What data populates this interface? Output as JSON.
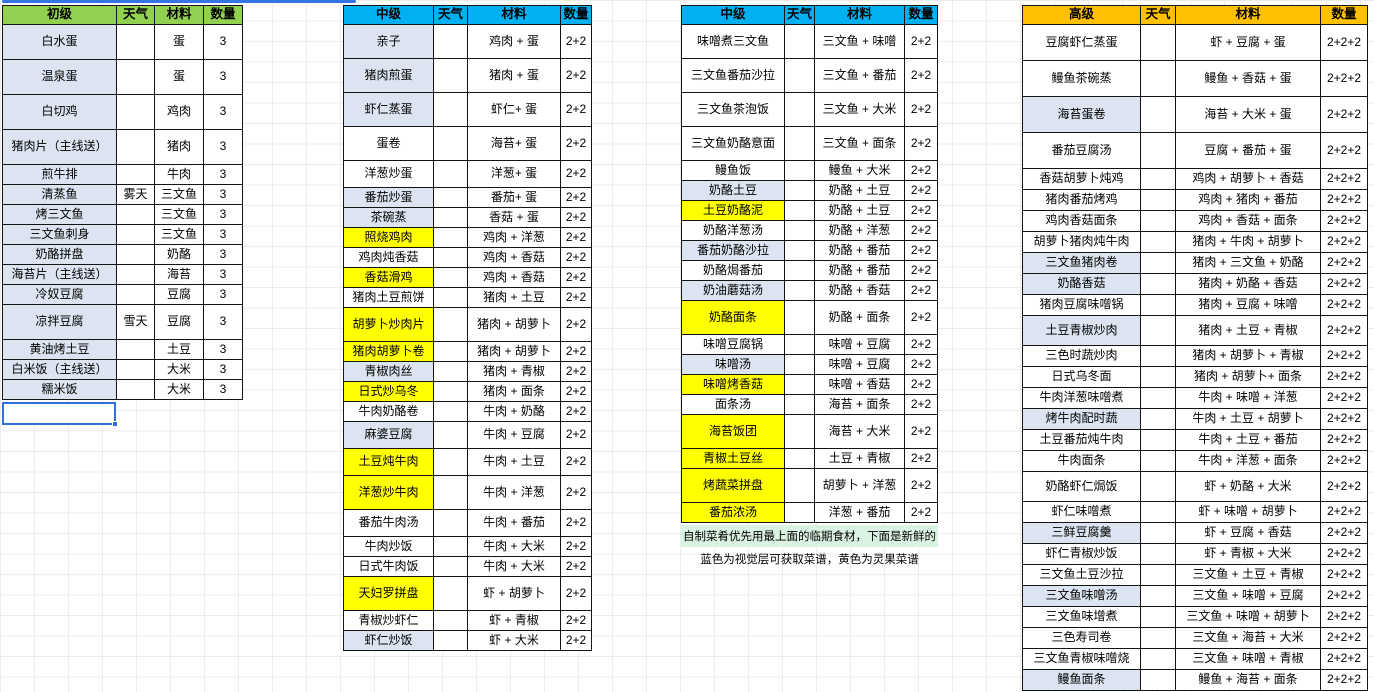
{
  "colors": {
    "header_green": "#92d050",
    "header_blue": "#00b0f0",
    "header_orange": "#ffc000",
    "cell_blue": "#dce4f2",
    "cell_yellow": "#ffff00",
    "note_green": "#d9f2e1",
    "selection_blue": "#2f6fd6"
  },
  "columns": {
    "weather": "天气",
    "material": "材料",
    "qty": "数量"
  },
  "notes": {
    "line1": "自制菜肴优先用最上面的临期食材，下面是新鲜的",
    "line2": "蓝色为视觉层可获取菜谱，黄色为灵果菜谱"
  },
  "tables": [
    {
      "level": "初级",
      "header_color": "#92d050",
      "rows": [
        {
          "name": "白水蛋",
          "weather": "",
          "material": "蛋",
          "qty": "3",
          "bg": "blue",
          "h": "t"
        },
        {
          "name": "温泉蛋",
          "weather": "",
          "material": "蛋",
          "qty": "3",
          "bg": "blue",
          "h": "t"
        },
        {
          "name": "白切鸡",
          "weather": "",
          "material": "鸡肉",
          "qty": "3",
          "bg": "blue",
          "h": "t"
        },
        {
          "name": "猪肉片（主线送）",
          "weather": "",
          "material": "猪肉",
          "qty": "3",
          "bg": "blue",
          "h": "t"
        },
        {
          "name": "煎牛排",
          "weather": "",
          "material": "牛肉",
          "qty": "3",
          "bg": "blue",
          "h": "s"
        },
        {
          "name": "清蒸鱼",
          "weather": "雾天",
          "material": "三文鱼",
          "qty": "3",
          "bg": "blue",
          "h": "s"
        },
        {
          "name": "烤三文鱼",
          "weather": "",
          "material": "三文鱼",
          "qty": "3",
          "bg": "blue",
          "h": "s"
        },
        {
          "name": "三文鱼刺身",
          "weather": "",
          "material": "三文鱼",
          "qty": "3",
          "bg": "blue",
          "h": "s"
        },
        {
          "name": "奶酪拼盘",
          "weather": "",
          "material": "奶酪",
          "qty": "3",
          "bg": "blue",
          "h": "s"
        },
        {
          "name": "海苔片（主线送）",
          "weather": "",
          "material": "海苔",
          "qty": "3",
          "bg": "blue",
          "h": "s"
        },
        {
          "name": "冷奴豆腐",
          "weather": "",
          "material": "豆腐",
          "qty": "3",
          "bg": "blue",
          "h": "s"
        },
        {
          "name": "凉拌豆腐",
          "weather": "雪天",
          "material": "豆腐",
          "qty": "3",
          "bg": "blue",
          "h": "t"
        },
        {
          "name": "黄油烤土豆",
          "weather": "",
          "material": "土豆",
          "qty": "3",
          "bg": "blue",
          "h": "s"
        },
        {
          "name": "白米饭（主线送）",
          "weather": "",
          "material": "大米",
          "qty": "3",
          "bg": "blue",
          "h": "s"
        },
        {
          "name": "糯米饭",
          "weather": "",
          "material": "大米",
          "qty": "3",
          "bg": "blue",
          "h": "s"
        }
      ]
    },
    {
      "level": "中级",
      "header_color": "#00b0f0",
      "rows": [
        {
          "name": "亲子",
          "weather": "",
          "material": "鸡肉 + 蛋",
          "qty": "2+2",
          "bg": "blue",
          "h": "t"
        },
        {
          "name": "猪肉煎蛋",
          "weather": "",
          "material": "猪肉 + 蛋",
          "qty": "2+2",
          "bg": "blue",
          "h": "t"
        },
        {
          "name": "虾仁蒸蛋",
          "weather": "",
          "material": "虾仁+ 蛋",
          "qty": "2+2",
          "bg": "blue",
          "h": "t"
        },
        {
          "name": "蛋卷",
          "weather": "",
          "material": "海苔+ 蛋",
          "qty": "2+2",
          "bg": "white",
          "h": "t"
        },
        {
          "name": "洋葱炒蛋",
          "weather": "",
          "material": "洋葱+ 蛋",
          "qty": "2+2",
          "bg": "white",
          "h": "m"
        },
        {
          "name": "番茄炒蛋",
          "weather": "",
          "material": "番茄+ 蛋",
          "qty": "2+2",
          "bg": "blue",
          "h": "s"
        },
        {
          "name": "茶碗蒸",
          "weather": "",
          "material": "香菇 + 蛋",
          "qty": "2+2",
          "bg": "blue",
          "h": "s"
        },
        {
          "name": "照烧鸡肉",
          "weather": "",
          "material": "鸡肉 + 洋葱",
          "qty": "2+2",
          "bg": "yellow",
          "h": "s"
        },
        {
          "name": "鸡肉炖香菇",
          "weather": "",
          "material": "鸡肉 + 香菇",
          "qty": "2+2",
          "bg": "white",
          "h": "s"
        },
        {
          "name": "香菇滑鸡",
          "weather": "",
          "material": "鸡肉 + 香菇",
          "qty": "2+2",
          "bg": "yellow",
          "h": "s"
        },
        {
          "name": "猪肉土豆煎饼",
          "weather": "",
          "material": "猪肉 + 土豆",
          "qty": "2+2",
          "bg": "white",
          "h": "s"
        },
        {
          "name": "胡萝卜炒肉片",
          "weather": "",
          "material": "猪肉 + 胡萝卜",
          "qty": "2+2",
          "bg": "yellow",
          "h": "t"
        },
        {
          "name": "猪肉胡萝卜卷",
          "weather": "",
          "material": "猪肉 + 胡萝卜",
          "qty": "2+2",
          "bg": "yellow",
          "h": "s"
        },
        {
          "name": "青椒肉丝",
          "weather": "",
          "material": "猪肉 + 青椒",
          "qty": "2+2",
          "bg": "blue",
          "h": "s"
        },
        {
          "name": "日式炒乌冬",
          "weather": "",
          "material": "猪肉 + 面条",
          "qty": "2+2",
          "bg": "yellow",
          "h": "s"
        },
        {
          "name": "牛肉奶酪卷",
          "weather": "",
          "material": "牛肉 + 奶酪",
          "qty": "2+2",
          "bg": "white",
          "h": "s"
        },
        {
          "name": "麻婆豆腐",
          "weather": "",
          "material": "牛肉 + 豆腐",
          "qty": "2+2",
          "bg": "blue",
          "h": "m"
        },
        {
          "name": "土豆炖牛肉",
          "weather": "",
          "material": "牛肉 + 土豆",
          "qty": "2+2",
          "bg": "yellow",
          "h": "m"
        },
        {
          "name": "洋葱炒牛肉",
          "weather": "",
          "material": "牛肉 + 洋葱",
          "qty": "2+2",
          "bg": "yellow",
          "h": "t"
        },
        {
          "name": "番茄牛肉汤",
          "weather": "",
          "material": "牛肉 + 番茄",
          "qty": "2+2",
          "bg": "white",
          "h": "m"
        },
        {
          "name": "牛肉炒饭",
          "weather": "",
          "material": "牛肉 + 大米",
          "qty": "2+2",
          "bg": "white",
          "h": "s"
        },
        {
          "name": "日式牛肉饭",
          "weather": "",
          "material": "牛肉 + 大米",
          "qty": "2+2",
          "bg": "white",
          "h": "s"
        },
        {
          "name": "天妇罗拼盘",
          "weather": "",
          "material": "虾 + 胡萝卜",
          "qty": "2+2",
          "bg": "yellow",
          "h": "t"
        },
        {
          "name": "青椒炒虾仁",
          "weather": "",
          "material": "虾 + 青椒",
          "qty": "2+2",
          "bg": "white",
          "h": "s"
        },
        {
          "name": "虾仁炒饭",
          "weather": "",
          "material": "虾 + 大米",
          "qty": "2+2",
          "bg": "blue",
          "h": "s"
        }
      ]
    },
    {
      "level": "中级",
      "header_color": "#00b0f0",
      "rows": [
        {
          "name": "味噌煮三文鱼",
          "weather": "",
          "material": "三文鱼 + 味噌",
          "qty": "2+2",
          "bg": "white",
          "h": "t"
        },
        {
          "name": "三文鱼番茄沙拉",
          "weather": "",
          "material": "三文鱼 + 番茄",
          "qty": "2+2",
          "bg": "white",
          "h": "t"
        },
        {
          "name": "三文鱼茶泡饭",
          "weather": "",
          "material": "三文鱼 + 大米",
          "qty": "2+2",
          "bg": "white",
          "h": "t"
        },
        {
          "name": "三文鱼奶酪意面",
          "weather": "",
          "material": "三文鱼 + 面条",
          "qty": "2+2",
          "bg": "white",
          "h": "t"
        },
        {
          "name": "鳗鱼饭",
          "weather": "",
          "material": "鳗鱼 + 大米",
          "qty": "2+2",
          "bg": "white",
          "h": "s"
        },
        {
          "name": "奶酪土豆",
          "weather": "",
          "material": "奶酪 + 土豆",
          "qty": "2+2",
          "bg": "blue",
          "h": "s"
        },
        {
          "name": "土豆奶酪泥",
          "weather": "",
          "material": "奶酪 + 土豆",
          "qty": "2+2",
          "bg": "yellow",
          "h": "s"
        },
        {
          "name": "奶酪洋葱汤",
          "weather": "",
          "material": "奶酪 + 洋葱",
          "qty": "2+2",
          "bg": "white",
          "h": "s"
        },
        {
          "name": "番茄奶酪沙拉",
          "weather": "",
          "material": "奶酪 + 番茄",
          "qty": "2+2",
          "bg": "blue",
          "h": "s"
        },
        {
          "name": "奶酪焗番茄",
          "weather": "",
          "material": "奶酪 + 番茄",
          "qty": "2+2",
          "bg": "white",
          "h": "s"
        },
        {
          "name": "奶油蘑菇汤",
          "weather": "",
          "material": "奶酪 + 香菇",
          "qty": "2+2",
          "bg": "blue",
          "h": "s"
        },
        {
          "name": "奶酪面条",
          "weather": "",
          "material": "奶酪 + 面条",
          "qty": "2+2",
          "bg": "yellow",
          "h": "t"
        },
        {
          "name": "味噌豆腐锅",
          "weather": "",
          "material": "味噌 + 豆腐",
          "qty": "2+2",
          "bg": "white",
          "h": "s"
        },
        {
          "name": "味噌汤",
          "weather": "",
          "material": "味噌 + 豆腐",
          "qty": "2+2",
          "bg": "blue",
          "h": "s"
        },
        {
          "name": "味噌烤香菇",
          "weather": "",
          "material": "味噌 + 香菇",
          "qty": "2+2",
          "bg": "yellow",
          "h": "s"
        },
        {
          "name": "面条汤",
          "weather": "",
          "material": "海苔 + 面条",
          "qty": "2+2",
          "bg": "white",
          "h": "s"
        },
        {
          "name": "海苔饭团",
          "weather": "",
          "material": "海苔 + 大米",
          "qty": "2+2",
          "bg": "yellow",
          "h": "t"
        },
        {
          "name": "青椒土豆丝",
          "weather": "",
          "material": "土豆 + 青椒",
          "qty": "2+2",
          "bg": "yellow",
          "h": "s"
        },
        {
          "name": "烤蔬菜拼盘",
          "weather": "",
          "material": "胡萝卜 + 洋葱",
          "qty": "2+2",
          "bg": "yellow",
          "h": "t"
        },
        {
          "name": "番茄浓汤",
          "weather": "",
          "material": "洋葱 + 番茄",
          "qty": "2+2",
          "bg": "yellow",
          "h": "s"
        }
      ]
    },
    {
      "level": "高级",
      "header_color": "#ffc000",
      "rows": [
        {
          "name": "豆腐虾仁蒸蛋",
          "weather": "",
          "material": "虾 + 豆腐 + 蛋",
          "qty": "2+2+2",
          "bg": "white",
          "h": "t"
        },
        {
          "name": "鳗鱼茶碗蒸",
          "weather": "",
          "material": "鳗鱼 + 香菇 + 蛋",
          "qty": "2+2+2",
          "bg": "white",
          "h": "t"
        },
        {
          "name": "海苔蛋卷",
          "weather": "",
          "material": "海苔 + 大米 + 蛋",
          "qty": "2+2+2",
          "bg": "blue",
          "h": "t"
        },
        {
          "name": "番茄豆腐汤",
          "weather": "",
          "material": "豆腐 + 番茄 + 蛋",
          "qty": "2+2+2",
          "bg": "white",
          "h": "t"
        },
        {
          "name": "香菇胡萝卜炖鸡",
          "weather": "",
          "material": "鸡肉 + 胡萝卜 + 香菇",
          "qty": "2+2+2",
          "bg": "white",
          "h": "s"
        },
        {
          "name": "猪肉番茄烤鸡",
          "weather": "",
          "material": "鸡肉 + 猪肉 + 番茄",
          "qty": "2+2+2",
          "bg": "white",
          "h": "s"
        },
        {
          "name": "鸡肉香菇面条",
          "weather": "",
          "material": "鸡肉 + 香菇 + 面条",
          "qty": "2+2+2",
          "bg": "white",
          "h": "s"
        },
        {
          "name": "胡萝卜猪肉炖牛肉",
          "weather": "",
          "material": "猪肉 + 牛肉 + 胡萝卜",
          "qty": "2+2+2",
          "bg": "white",
          "h": "s"
        },
        {
          "name": "三文鱼猪肉卷",
          "weather": "",
          "material": "猪肉 + 三文鱼 + 奶酪",
          "qty": "2+2+2",
          "bg": "blue",
          "h": "s"
        },
        {
          "name": "奶酪香菇",
          "weather": "",
          "material": "猪肉 + 奶酪 + 香菇",
          "qty": "2+2+2",
          "bg": "blue",
          "h": "s"
        },
        {
          "name": "猪肉豆腐味噌锅",
          "weather": "",
          "material": "猪肉 + 豆腐 + 味噌",
          "qty": "2+2+2",
          "bg": "white",
          "h": "s"
        },
        {
          "name": "土豆青椒炒肉",
          "weather": "",
          "material": "猪肉 + 土豆 + 青椒",
          "qty": "2+2+2",
          "bg": "blue",
          "h": "m"
        },
        {
          "name": "三色时蔬炒肉",
          "weather": "",
          "material": "猪肉 + 胡萝卜 + 青椒",
          "qty": "2+2+2",
          "bg": "white",
          "h": "s"
        },
        {
          "name": "日式乌冬面",
          "weather": "",
          "material": "猪肉 + 胡萝卜+ 面条",
          "qty": "2+2+2",
          "bg": "white",
          "h": "s"
        },
        {
          "name": "牛肉洋葱味噌煮",
          "weather": "",
          "material": "牛肉 + 味噌 + 洋葱",
          "qty": "2+2+2",
          "bg": "white",
          "h": "s"
        },
        {
          "name": "烤牛肉配时蔬",
          "weather": "",
          "material": "牛肉 + 土豆 + 胡萝卜",
          "qty": "2+2+2",
          "bg": "blue",
          "h": "s"
        },
        {
          "name": "土豆番茄炖牛肉",
          "weather": "",
          "material": "牛肉 + 土豆 + 番茄",
          "qty": "2+2+2",
          "bg": "white",
          "h": "s"
        },
        {
          "name": "牛肉面条",
          "weather": "",
          "material": "牛肉 + 洋葱 + 面条",
          "qty": "2+2+2",
          "bg": "white",
          "h": "s"
        },
        {
          "name": "奶酪虾仁焗饭",
          "weather": "",
          "material": "虾 + 奶酪 + 大米",
          "qty": "2+2+2",
          "bg": "white",
          "h": "m"
        },
        {
          "name": "虾仁味噌煮",
          "weather": "",
          "material": "虾 + 味噌 + 胡萝卜",
          "qty": "2+2+2",
          "bg": "white",
          "h": "s"
        },
        {
          "name": "三鲜豆腐羹",
          "weather": "",
          "material": "虾 + 豆腐 + 香菇",
          "qty": "2+2+2",
          "bg": "blue",
          "h": "s"
        },
        {
          "name": "虾仁青椒炒饭",
          "weather": "",
          "material": "虾 + 青椒 + 大米",
          "qty": "2+2+2",
          "bg": "white",
          "h": "s"
        },
        {
          "name": "三文鱼土豆沙拉",
          "weather": "",
          "material": "三文鱼 + 土豆 + 青椒",
          "qty": "2+2+2",
          "bg": "white",
          "h": "s"
        },
        {
          "name": "三文鱼味噌汤",
          "weather": "",
          "material": "三文鱼 + 味噌 + 豆腐",
          "qty": "2+2+2",
          "bg": "blue",
          "h": "s"
        },
        {
          "name": "三文鱼味增煮",
          "weather": "",
          "material": "三文鱼 + 味噌 + 胡萝卜",
          "qty": "2+2+2",
          "bg": "white",
          "h": "s"
        },
        {
          "name": "三色寿司卷",
          "weather": "",
          "material": "三文鱼 + 海苔 + 大米",
          "qty": "2+2+2",
          "bg": "white",
          "h": "s"
        },
        {
          "name": "三文鱼青椒味噌烧",
          "weather": "",
          "material": "三文鱼 + 味噌 + 青椒",
          "qty": "2+2+2",
          "bg": "white",
          "h": "s"
        },
        {
          "name": "鳗鱼面条",
          "weather": "",
          "material": "鳗鱼 + 海苔 + 面条",
          "qty": "2+2+2",
          "bg": "blue",
          "h": "s"
        }
      ]
    }
  ]
}
